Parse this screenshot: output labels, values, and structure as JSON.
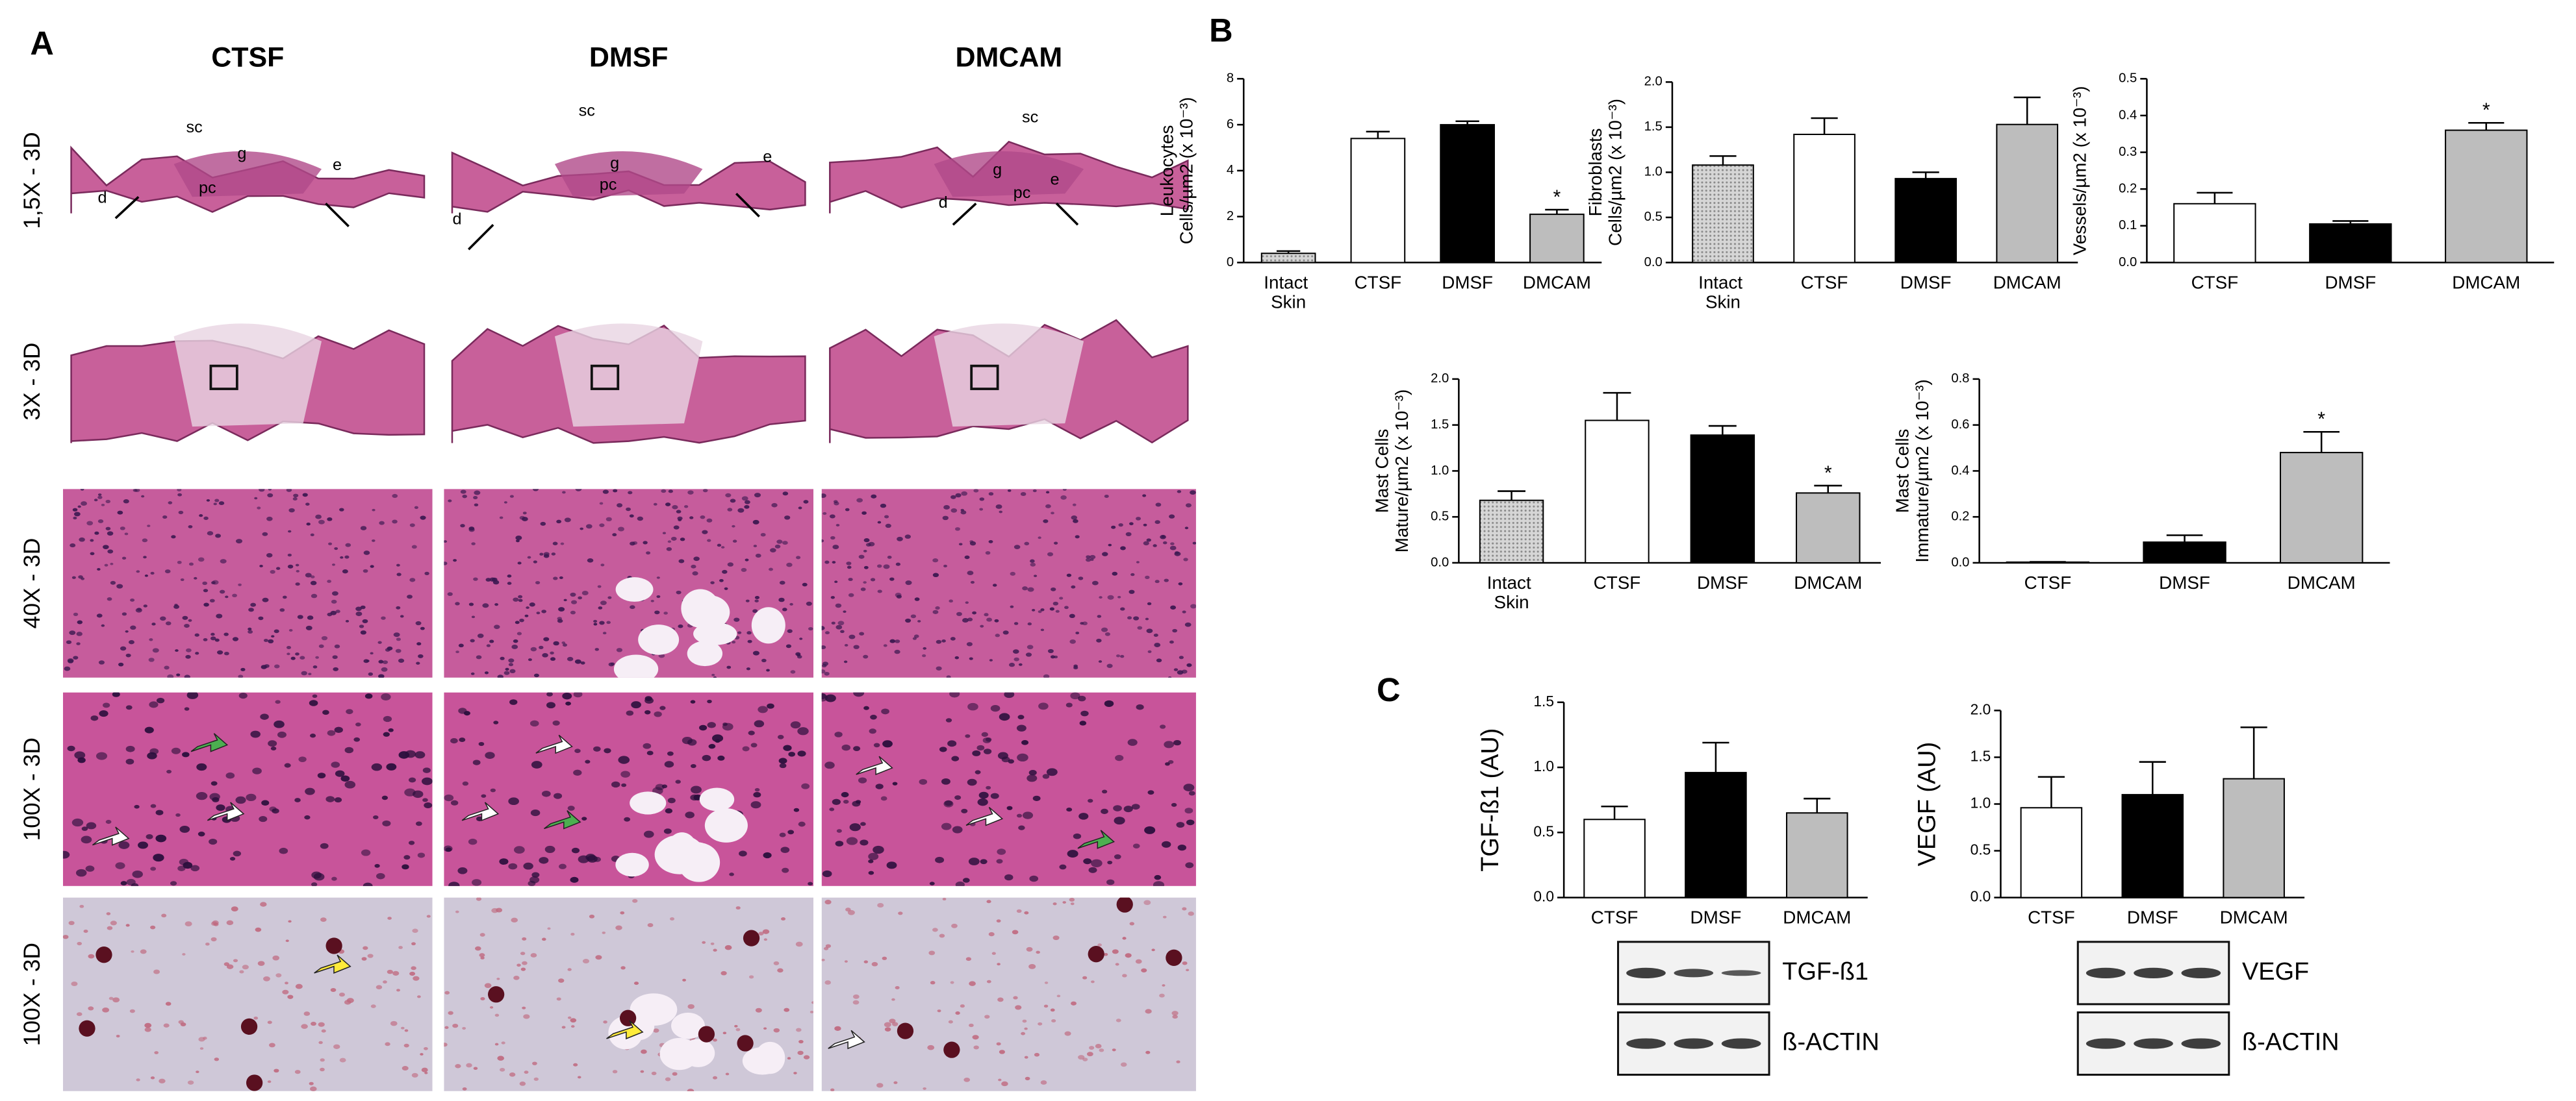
{
  "panel_labels": [
    "A",
    "B",
    "C"
  ],
  "panel_a": {
    "columns": [
      "CTSF",
      "DMSF",
      "DMCAM"
    ],
    "rows": [
      "1,5X - 3D",
      "3X - 3D",
      "40X - 3D",
      "100X - 3D",
      "100X - 3D"
    ],
    "annotations": [
      [
        "sc",
        "g",
        "pc",
        "e",
        "d"
      ],
      [
        "sc",
        "g",
        "pc",
        "e",
        "d"
      ],
      [
        "sc",
        "g",
        "pc",
        "e",
        "d"
      ]
    ]
  },
  "blots": [
    {
      "bands": [
        "TGF-ß1",
        "ß-ACTIN"
      ]
    },
    {
      "bands": [
        "VEGF",
        "ß-ACTIN"
      ]
    }
  ],
  "chart_data": [
    {
      "type": "bar",
      "y_label": [
        "Leukocytes",
        "Cells/µm2  (x 10⁻³)"
      ],
      "categories": [
        "Intact Skin",
        "CTSF",
        "DMSF",
        "DMCAM"
      ],
      "values": [
        0.4,
        5.4,
        6.0,
        2.1
      ],
      "errors": [
        0.1,
        0.3,
        0.15,
        0.2
      ],
      "colors": [
        "#c6c6c6",
        "#ffffff",
        "#000000",
        "#bdbdbd"
      ],
      "ylim": [
        0,
        8
      ],
      "yticks": [
        0,
        2,
        4,
        6,
        8
      ],
      "annotations": [
        {
          "text": "*",
          "category": "DMCAM"
        }
      ]
    },
    {
      "type": "bar",
      "y_label": [
        "Fibroblasts",
        "Cells/µm2  (x 10⁻³)"
      ],
      "categories": [
        "Intact Skin",
        "CTSF",
        "DMSF",
        "DMCAM"
      ],
      "values": [
        1.08,
        1.42,
        0.93,
        1.53
      ],
      "errors": [
        0.1,
        0.18,
        0.07,
        0.3
      ],
      "colors": [
        "#c6c6c6",
        "#ffffff",
        "#000000",
        "#bdbdbd"
      ],
      "ylim": [
        0,
        2
      ],
      "yticks": [
        {
          "value": 0,
          "label": "0.0"
        },
        0.5,
        {
          "value": 1,
          "label": "1.0"
        },
        1.5,
        {
          "value": 2,
          "label": "2.0"
        }
      ]
    },
    {
      "type": "bar",
      "y_label": [
        "Vessels/µm2  (x 10⁻³)"
      ],
      "categories": [
        "CTSF",
        "DMSF",
        "DMCAM"
      ],
      "values": [
        0.16,
        0.105,
        0.36
      ],
      "errors": [
        0.03,
        0.008,
        0.02
      ],
      "colors": [
        "#ffffff",
        "#000000",
        "#bdbdbd"
      ],
      "ylim": [
        0,
        0.5
      ],
      "yticks": [
        {
          "value": 0,
          "label": "0.0"
        },
        0.1,
        0.2,
        0.3,
        0.4,
        0.5
      ],
      "annotations": [
        {
          "text": "*",
          "category": "DMCAM"
        }
      ]
    },
    {
      "type": "bar",
      "y_label": [
        "Mast Cells",
        "Mature/µm2  (x 10⁻³)"
      ],
      "categories": [
        "Intact Skin",
        "CTSF",
        "DMSF",
        "DMCAM"
      ],
      "values": [
        0.68,
        1.55,
        1.39,
        0.76
      ],
      "errors": [
        0.1,
        0.3,
        0.1,
        0.08
      ],
      "colors": [
        "#c6c6c6",
        "#ffffff",
        "#000000",
        "#bdbdbd"
      ],
      "ylim": [
        0,
        2
      ],
      "yticks": [
        {
          "value": 0,
          "label": "0.0"
        },
        0.5,
        {
          "value": 1,
          "label": "1.0"
        },
        1.5,
        {
          "value": 2,
          "label": "2.0"
        }
      ],
      "annotations": [
        {
          "text": "*",
          "category": "DMCAM"
        }
      ]
    },
    {
      "type": "bar",
      "y_label": [
        "Mast Cells",
        "Immature/µm2  (x 10⁻³)"
      ],
      "categories": [
        "CTSF",
        "DMSF",
        "DMCAM"
      ],
      "values": [
        0.003,
        0.09,
        0.48
      ],
      "errors": [
        0.001,
        0.03,
        0.09
      ],
      "colors": [
        "#ffffff",
        "#000000",
        "#bdbdbd"
      ],
      "ylim": [
        0,
        0.8
      ],
      "yticks": [
        {
          "value": 0,
          "label": "0.0"
        },
        0.2,
        0.4,
        0.6,
        0.8
      ],
      "annotations": [
        {
          "text": "*",
          "category": "DMCAM"
        }
      ]
    },
    {
      "type": "bar",
      "y_label": [
        "TGF-ß1 (AU)"
      ],
      "categories": [
        "CTSF",
        "DMSF",
        "DMCAM"
      ],
      "values": [
        0.6,
        0.96,
        0.65
      ],
      "errors": [
        0.1,
        0.23,
        0.11
      ],
      "colors": [
        "#ffffff",
        "#000000",
        "#bdbdbd"
      ],
      "ylim": [
        0,
        1.5
      ],
      "yticks": [
        {
          "value": 0,
          "label": "0.0"
        },
        0.5,
        {
          "value": 1,
          "label": "1.0"
        },
        1.5
      ]
    },
    {
      "type": "bar",
      "y_label": [
        "VEGF (AU)"
      ],
      "categories": [
        "CTSF",
        "DMSF",
        "DMCAM"
      ],
      "values": [
        0.96,
        1.1,
        1.27
      ],
      "errors": [
        0.33,
        0.35,
        0.55
      ],
      "colors": [
        "#ffffff",
        "#000000",
        "#bdbdbd"
      ],
      "ylim": [
        0,
        2
      ],
      "yticks": [
        {
          "value": 0,
          "label": "0.0"
        },
        0.5,
        {
          "value": 1,
          "label": "1.0"
        },
        1.5,
        {
          "value": 2,
          "label": "2.0"
        }
      ]
    }
  ]
}
